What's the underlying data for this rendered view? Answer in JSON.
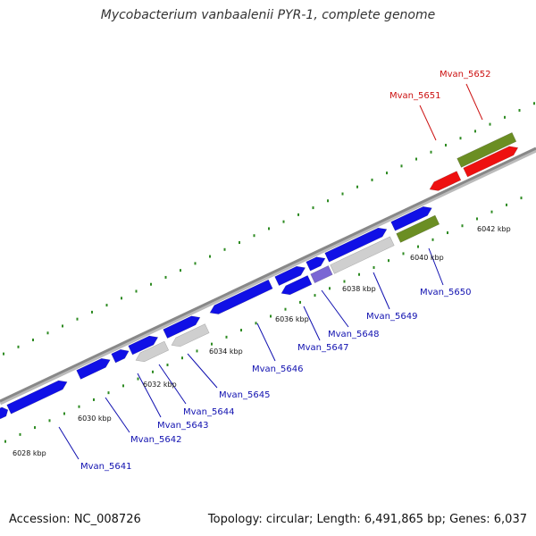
{
  "title": "Mycobacterium vanbaalenii PYR-1, complete genome",
  "footer": {
    "accession": "Accession: NC_008726",
    "info": "Topology: circular; Length: 6,491,865 bp; Genes: 6,037"
  },
  "colors": {
    "backbone": "#8c8c8c",
    "tick": "#2e8b22",
    "forward_gene": "#1010e6",
    "reverse_gene": "#1010e6",
    "rna": "#ee1010",
    "pseudo": "#cfcfcf",
    "feature_green": "#6b8e23",
    "overlap": "#7a66d4",
    "label_blue": "#1010b0",
    "label_red": "#cc1111"
  },
  "ticks": [
    {
      "label": "6028 kbp"
    },
    {
      "label": "6030 kbp"
    },
    {
      "label": "6032 kbp"
    },
    {
      "label": "6034 kbp"
    },
    {
      "label": "6036 kbp"
    },
    {
      "label": "6038 kbp"
    },
    {
      "label": "6040 kbp"
    },
    {
      "label": "6042 kbp"
    }
  ],
  "genes": [
    {
      "label": "Mvan_5641"
    },
    {
      "label": "Mvan_5642"
    },
    {
      "label": "Mvan_5643"
    },
    {
      "label": "Mvan_5644"
    },
    {
      "label": "Mvan_5645"
    },
    {
      "label": "Mvan_5646"
    },
    {
      "label": "Mvan_5647"
    },
    {
      "label": "Mvan_5648"
    },
    {
      "label": "Mvan_5649"
    },
    {
      "label": "Mvan_5650"
    },
    {
      "label": "Mvan_5651"
    },
    {
      "label": "Mvan_5652"
    }
  ]
}
